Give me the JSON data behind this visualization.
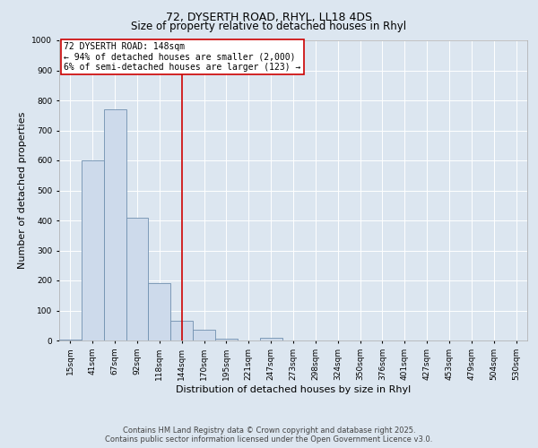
{
  "title1": "72, DYSERTH ROAD, RHYL, LL18 4DS",
  "title2": "Size of property relative to detached houses in Rhyl",
  "xlabel": "Distribution of detached houses by size in Rhyl",
  "ylabel": "Number of detached properties",
  "categories": [
    "15sqm",
    "41sqm",
    "67sqm",
    "92sqm",
    "118sqm",
    "144sqm",
    "170sqm",
    "195sqm",
    "221sqm",
    "247sqm",
    "273sqm",
    "298sqm",
    "324sqm",
    "350sqm",
    "376sqm",
    "401sqm",
    "427sqm",
    "453sqm",
    "479sqm",
    "504sqm",
    "530sqm"
  ],
  "values": [
    2,
    600,
    770,
    410,
    190,
    65,
    35,
    5,
    0,
    8,
    0,
    0,
    0,
    0,
    0,
    0,
    0,
    0,
    0,
    0,
    0
  ],
  "bar_color": "#cddaeb",
  "bar_edge_color": "#7090b0",
  "vline_x": 5,
  "vline_color": "#cc0000",
  "annotation_text": "72 DYSERTH ROAD: 148sqm\n← 94% of detached houses are smaller (2,000)\n6% of semi-detached houses are larger (123) →",
  "annotation_box_color": "#cc0000",
  "ylim": [
    0,
    1000
  ],
  "yticks": [
    0,
    100,
    200,
    300,
    400,
    500,
    600,
    700,
    800,
    900,
    1000
  ],
  "background_color": "#dce6f0",
  "plot_bg_color": "#dce6f0",
  "grid_color": "#ffffff",
  "footer1": "Contains HM Land Registry data © Crown copyright and database right 2025.",
  "footer2": "Contains public sector information licensed under the Open Government Licence v3.0.",
  "title_fontsize": 9,
  "subtitle_fontsize": 8.5,
  "axis_label_fontsize": 8,
  "tick_fontsize": 6.5,
  "annotation_fontsize": 7,
  "footer_fontsize": 6
}
